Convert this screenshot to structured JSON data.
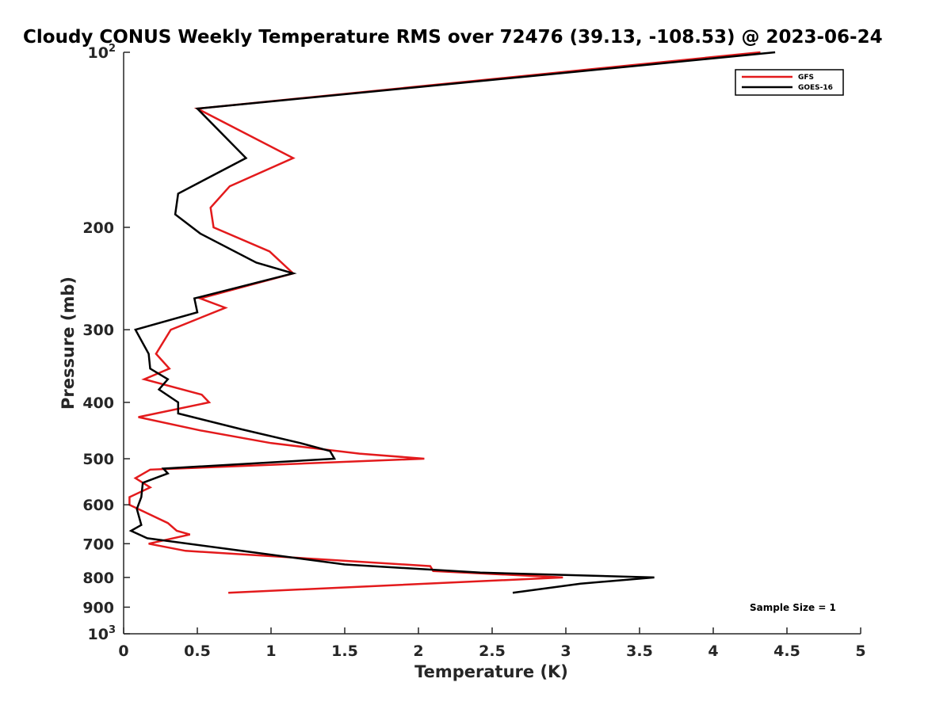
{
  "chart_data": {
    "type": "line",
    "title": "Cloudy CONUS Weekly Temperature RMS over 72476 (39.13, -108.53) @ 2023-06-24",
    "xlabel": "Temperature (K)",
    "ylabel": "Pressure (mb)",
    "xlim": [
      0,
      5
    ],
    "ylim": [
      100,
      1000
    ],
    "yscale": "log",
    "y_reversed": true,
    "xticks": [
      {
        "value": 0,
        "label": "0"
      },
      {
        "value": 0.5,
        "label": "0.5"
      },
      {
        "value": 1,
        "label": "1"
      },
      {
        "value": 1.5,
        "label": "1.5"
      },
      {
        "value": 2,
        "label": "2"
      },
      {
        "value": 2.5,
        "label": "2.5"
      },
      {
        "value": 3,
        "label": "3"
      },
      {
        "value": 3.5,
        "label": "3.5"
      },
      {
        "value": 4,
        "label": "4"
      },
      {
        "value": 4.5,
        "label": "4.5"
      },
      {
        "value": 5,
        "label": "5"
      }
    ],
    "yticks": [
      {
        "value": 100,
        "label": "10",
        "sup": "2"
      },
      {
        "value": 200,
        "label": "200",
        "sup": ""
      },
      {
        "value": 300,
        "label": "300",
        "sup": ""
      },
      {
        "value": 400,
        "label": "400",
        "sup": ""
      },
      {
        "value": 500,
        "label": "500",
        "sup": ""
      },
      {
        "value": 600,
        "label": "600",
        "sup": ""
      },
      {
        "value": 700,
        "label": "700",
        "sup": ""
      },
      {
        "value": 800,
        "label": "800",
        "sup": ""
      },
      {
        "value": 900,
        "label": "900",
        "sup": ""
      },
      {
        "value": 1000,
        "label": "10",
        "sup": "3"
      }
    ],
    "grid": false,
    "legend_position": "top-right",
    "series": [
      {
        "name": "GFS",
        "color": "#e31a1c",
        "points": [
          [
            4.32,
            100
          ],
          [
            0.5,
            125
          ],
          [
            1.15,
            152
          ],
          [
            0.72,
            170
          ],
          [
            0.59,
            185
          ],
          [
            0.61,
            200
          ],
          [
            0.99,
            220
          ],
          [
            1.15,
            240
          ],
          [
            0.52,
            265
          ],
          [
            0.69,
            275
          ],
          [
            0.32,
            300
          ],
          [
            0.22,
            330
          ],
          [
            0.31,
            350
          ],
          [
            0.14,
            365
          ],
          [
            0.53,
            388
          ],
          [
            0.58,
            400
          ],
          [
            0.1,
            424
          ],
          [
            0.52,
            447
          ],
          [
            1.0,
            470
          ],
          [
            1.6,
            490
          ],
          [
            2.04,
            500
          ],
          [
            0.18,
            522
          ],
          [
            0.08,
            540
          ],
          [
            0.18,
            560
          ],
          [
            0.04,
            582
          ],
          [
            0.04,
            600
          ],
          [
            0.3,
            645
          ],
          [
            0.36,
            665
          ],
          [
            0.45,
            675
          ],
          [
            0.17,
            700
          ],
          [
            0.42,
            720
          ],
          [
            2.08,
            765
          ],
          [
            2.1,
            780
          ],
          [
            2.98,
            800
          ],
          [
            0.71,
            850
          ]
        ]
      },
      {
        "name": "GOES-16",
        "color": "#000000",
        "points": [
          [
            4.42,
            100
          ],
          [
            0.5,
            125
          ],
          [
            0.83,
            152
          ],
          [
            0.37,
            175
          ],
          [
            0.35,
            190
          ],
          [
            0.52,
            205
          ],
          [
            0.9,
            230
          ],
          [
            1.15,
            240
          ],
          [
            0.48,
            265
          ],
          [
            0.5,
            280
          ],
          [
            0.08,
            300
          ],
          [
            0.17,
            330
          ],
          [
            0.18,
            350
          ],
          [
            0.3,
            365
          ],
          [
            0.24,
            380
          ],
          [
            0.37,
            400
          ],
          [
            0.37,
            418
          ],
          [
            0.8,
            445
          ],
          [
            1.2,
            470
          ],
          [
            1.4,
            485
          ],
          [
            1.43,
            500
          ],
          [
            0.27,
            520
          ],
          [
            0.3,
            530
          ],
          [
            0.13,
            550
          ],
          [
            0.12,
            582
          ],
          [
            0.09,
            610
          ],
          [
            0.12,
            650
          ],
          [
            0.05,
            665
          ],
          [
            0.16,
            685
          ],
          [
            0.8,
            720
          ],
          [
            1.5,
            760
          ],
          [
            2.42,
            785
          ],
          [
            3.6,
            800
          ],
          [
            3.1,
            820
          ],
          [
            2.64,
            850
          ]
        ]
      }
    ],
    "annotation": "Sample Size = 1"
  }
}
